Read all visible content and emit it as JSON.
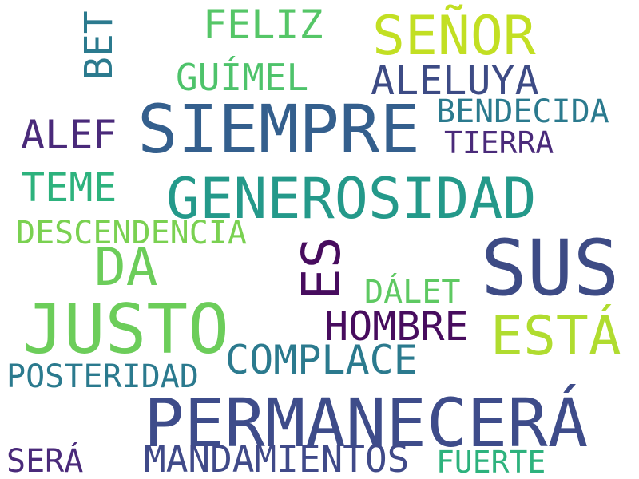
{
  "words": [
    {
      "id": "siempre",
      "text": "SIEMPRE",
      "color": "#345f8d"
    },
    {
      "id": "generosidad",
      "text": "GENEROSIDAD",
      "color": "#24998a"
    },
    {
      "id": "sus",
      "text": "SUS",
      "color": "#3d4b85"
    },
    {
      "id": "permanecera",
      "text": "PERMANECERÁ",
      "color": "#3e4c8a"
    },
    {
      "id": "justo",
      "text": "JUSTO",
      "color": "#6ccd5a"
    },
    {
      "id": "senor",
      "text": "SEÑOR",
      "color": "#c2df23"
    },
    {
      "id": "esta",
      "text": "ESTÁ",
      "color": "#b0dc2f"
    },
    {
      "id": "es",
      "text": "ES",
      "color": "#470c5e"
    },
    {
      "id": "da",
      "text": "DA",
      "color": "#6ccd5a"
    },
    {
      "id": "complace",
      "text": "COMPLACE",
      "color": "#2b7a8e"
    },
    {
      "id": "hombre",
      "text": "HOMBRE",
      "color": "#470c5e"
    },
    {
      "id": "aleluya",
      "text": "ALELUYA",
      "color": "#3d4b85"
    },
    {
      "id": "mandamientos",
      "text": "MANDAMIENTOS",
      "color": "#404a89"
    },
    {
      "id": "bet",
      "text": "BET",
      "color": "#2b7a8e"
    },
    {
      "id": "feliz",
      "text": "FELIZ",
      "color": "#55c667"
    },
    {
      "id": "guimel",
      "text": "GUÍMEL",
      "color": "#4ec36b"
    },
    {
      "id": "alef",
      "text": "ALEF",
      "color": "#4a2a7a"
    },
    {
      "id": "teme",
      "text": "TEME",
      "color": "#2db27d"
    },
    {
      "id": "descendencia",
      "text": "DESCENDENCIA",
      "color": "#7ad151"
    },
    {
      "id": "bendecida",
      "text": "BENDECIDA",
      "color": "#2b7a8e"
    },
    {
      "id": "tierra",
      "text": "TIERRA",
      "color": "#4a2a7a"
    },
    {
      "id": "dalet",
      "text": "DÁLET",
      "color": "#5ec962"
    },
    {
      "id": "posteridad",
      "text": "POSTERIDAD",
      "color": "#2b7a8e"
    },
    {
      "id": "sera",
      "text": "SERÁ",
      "color": "#4a2a7a"
    },
    {
      "id": "fuerte",
      "text": "FUERTE",
      "color": "#2db27d"
    }
  ]
}
